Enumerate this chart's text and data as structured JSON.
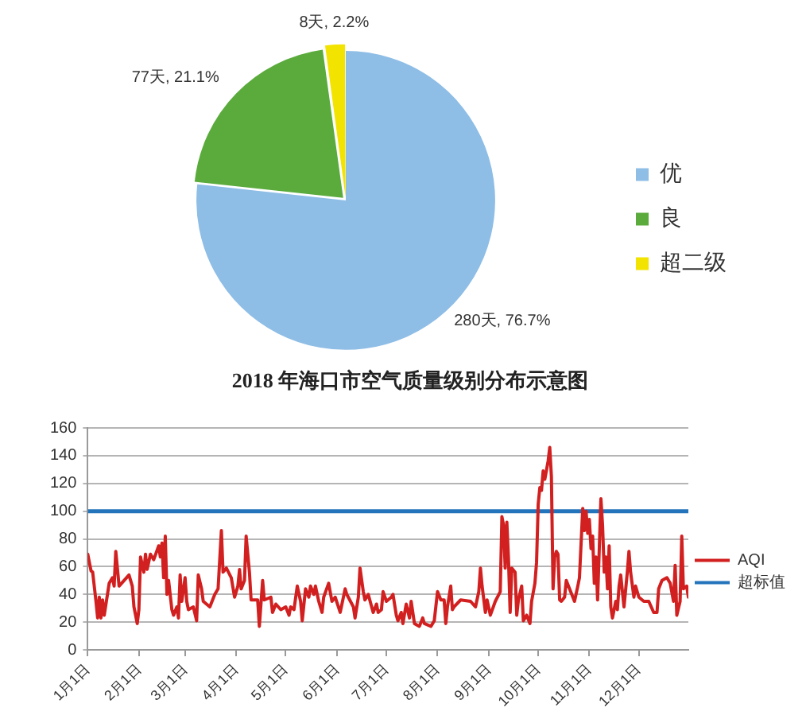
{
  "chart_data": [
    {
      "type": "pie",
      "title": "2018 年海口市空气质量级别分布示意图",
      "categories": [
        "优",
        "良",
        "超二级"
      ],
      "values": [
        280,
        77,
        8
      ],
      "colors": [
        "#8ebde6",
        "#5aab3c",
        "#f3e300"
      ],
      "value_labels": [
        "280天, 76.7%",
        "77天, 21.1%",
        "8天, 2.2%"
      ],
      "legend": "right"
    },
    {
      "type": "line",
      "x": [
        "2018-01-01",
        "2018-01-03",
        "2018-01-04",
        "2018-01-06",
        "2018-01-07",
        "2018-01-08",
        "2018-01-09",
        "2018-01-10",
        "2018-01-11",
        "2018-01-14",
        "2018-01-16",
        "2018-01-17",
        "2018-01-18",
        "2018-01-20",
        "2018-01-23",
        "2018-01-26",
        "2018-01-28",
        "2018-01-29",
        "2018-01-31",
        "2018-02-01",
        "2018-02-02",
        "2018-02-04",
        "2018-02-05",
        "2018-02-06",
        "2018-02-08",
        "2018-02-10",
        "2018-02-13",
        "2018-02-14",
        "2018-02-15",
        "2018-02-16",
        "2018-02-17",
        "2018-02-18",
        "2018-02-19",
        "2018-02-21",
        "2018-02-22",
        "2018-02-24",
        "2018-02-25",
        "2018-02-26",
        "2018-02-27",
        "2018-03-01",
        "2018-03-02",
        "2018-03-03",
        "2018-03-06",
        "2018-03-08",
        "2018-03-09",
        "2018-03-11",
        "2018-03-12",
        "2018-03-16",
        "2018-03-19",
        "2018-03-21",
        "2018-03-23",
        "2018-03-24",
        "2018-03-26",
        "2018-03-29",
        "2018-03-31",
        "2018-04-02",
        "2018-04-03",
        "2018-04-04",
        "2018-04-06",
        "2018-04-07",
        "2018-04-09",
        "2018-04-10",
        "2018-04-14",
        "2018-04-15",
        "2018-04-17",
        "2018-04-18",
        "2018-04-22",
        "2018-04-23",
        "2018-04-25",
        "2018-04-28",
        "2018-05-01",
        "2018-05-03",
        "2018-05-04",
        "2018-05-06",
        "2018-05-08",
        "2018-05-10",
        "2018-05-11",
        "2018-05-13",
        "2018-05-15",
        "2018-05-16",
        "2018-05-18",
        "2018-05-19",
        "2018-05-21",
        "2018-05-23",
        "2018-05-24",
        "2018-05-27",
        "2018-05-29",
        "2018-05-31",
        "2018-06-03",
        "2018-06-06",
        "2018-06-07",
        "2018-06-11",
        "2018-06-12",
        "2018-06-14",
        "2018-06-15",
        "2018-06-17",
        "2018-06-18",
        "2018-06-20",
        "2018-06-23",
        "2018-06-25",
        "2018-06-26",
        "2018-06-28",
        "2018-06-29",
        "2018-07-01",
        "2018-07-04",
        "2018-07-05",
        "2018-07-07",
        "2018-07-08",
        "2018-07-10",
        "2018-07-11",
        "2018-07-13",
        "2018-07-15",
        "2018-07-16",
        "2018-07-18",
        "2018-07-21",
        "2018-07-23",
        "2018-07-24",
        "2018-07-28",
        "2018-07-30",
        "2018-08-01",
        "2018-08-03",
        "2018-08-05",
        "2018-08-06",
        "2018-08-07",
        "2018-08-09",
        "2018-08-10",
        "2018-08-11",
        "2018-08-15",
        "2018-08-21",
        "2018-08-24",
        "2018-08-26",
        "2018-08-27",
        "2018-08-28",
        "2018-08-30",
        "2018-08-31",
        "2018-09-02",
        "2018-09-05",
        "2018-09-08",
        "2018-09-09",
        "2018-09-10",
        "2018-09-11",
        "2018-09-12",
        "2018-09-13",
        "2018-09-14",
        "2018-09-15",
        "2018-09-17",
        "2018-09-18",
        "2018-09-19",
        "2018-09-21",
        "2018-09-22",
        "2018-09-24",
        "2018-09-26",
        "2018-09-27",
        "2018-09-29",
        "2018-09-30",
        "2018-10-01",
        "2018-10-02",
        "2018-10-03",
        "2018-10-04",
        "2018-10-05",
        "2018-10-07",
        "2018-10-08",
        "2018-10-09",
        "2018-10-10",
        "2018-10-11",
        "2018-10-12",
        "2018-10-13",
        "2018-10-14",
        "2018-10-15",
        "2018-10-17",
        "2018-10-18",
        "2018-10-20",
        "2018-10-23",
        "2018-10-25",
        "2018-10-26",
        "2018-10-28",
        "2018-10-29",
        "2018-10-30",
        "2018-10-31",
        "2018-11-01",
        "2018-11-02",
        "2018-11-03",
        "2018-11-04",
        "2018-11-05",
        "2018-11-06",
        "2018-11-08",
        "2018-11-09",
        "2018-11-10",
        "2018-11-11",
        "2018-11-12",
        "2018-11-13",
        "2018-11-14",
        "2018-11-15",
        "2018-11-17",
        "2018-11-18",
        "2018-11-19",
        "2018-11-20",
        "2018-11-22",
        "2018-11-24",
        "2018-11-25",
        "2018-11-26",
        "2018-11-28",
        "2018-11-29",
        "2018-12-01",
        "2018-12-04",
        "2018-12-07",
        "2018-12-10",
        "2018-12-12",
        "2018-12-13",
        "2018-12-15",
        "2018-12-18",
        "2018-12-20",
        "2018-12-22",
        "2018-12-23",
        "2018-12-24",
        "2018-12-26",
        "2018-12-27",
        "2018-12-28",
        "2018-12-30",
        "2018-12-31"
      ],
      "series": [
        {
          "name": "AQI",
          "color": "#d21f1f",
          "values": [
            69,
            57,
            56,
            35,
            23,
            38,
            23,
            36,
            25,
            48,
            52,
            46,
            71,
            46,
            50,
            54,
            46,
            31,
            19,
            29,
            67,
            56,
            69,
            58,
            69,
            65,
            75,
            67,
            77,
            52,
            82,
            40,
            50,
            29,
            25,
            31,
            23,
            54,
            35,
            52,
            35,
            29,
            31,
            21,
            54,
            44,
            35,
            31,
            40,
            44,
            86,
            56,
            59,
            52,
            38,
            46,
            58,
            44,
            50,
            82,
            56,
            36,
            36,
            17,
            50,
            36,
            38,
            27,
            33,
            29,
            31,
            25,
            31,
            29,
            46,
            35,
            21,
            44,
            38,
            46,
            40,
            46,
            35,
            27,
            38,
            48,
            35,
            38,
            27,
            44,
            40,
            31,
            23,
            38,
            59,
            42,
            36,
            40,
            27,
            33,
            27,
            29,
            42,
            35,
            38,
            40,
            25,
            21,
            27,
            19,
            33,
            23,
            35,
            19,
            17,
            23,
            19,
            17,
            21,
            42,
            36,
            36,
            19,
            31,
            46,
            29,
            31,
            36,
            35,
            31,
            42,
            59,
            46,
            27,
            36,
            25,
            35,
            42,
            96,
            90,
            59,
            92,
            65,
            27,
            59,
            56,
            25,
            36,
            46,
            21,
            25,
            19,
            35,
            48,
            63,
            105,
            117,
            115,
            129,
            123,
            136,
            146,
            125,
            44,
            67,
            71,
            69,
            36,
            35,
            38,
            50,
            44,
            35,
            46,
            52,
            102,
            86,
            100,
            84,
            94,
            73,
            82,
            48,
            67,
            36,
            109,
            90,
            56,
            67,
            44,
            75,
            31,
            23,
            35,
            29,
            46,
            54,
            31,
            56,
            71,
            56,
            38,
            46,
            38,
            35,
            35,
            27,
            27,
            44,
            50,
            52,
            48,
            35,
            61,
            25,
            35,
            82,
            44,
            46,
            38
          ]
        }
      ],
      "xlim": [
        "2018-01-01",
        "2018-12-31"
      ],
      "xticks": [
        {
          "value": "2018-01-01",
          "label": "1月1日"
        },
        {
          "value": "2018-02-01",
          "label": "2月1日"
        },
        {
          "value": "2018-03-01",
          "label": "3月1日"
        },
        {
          "value": "2018-04-01",
          "label": "4月1日"
        },
        {
          "value": "2018-05-01",
          "label": "5月1日"
        },
        {
          "value": "2018-06-01",
          "label": "6月1日"
        },
        {
          "value": "2018-07-01",
          "label": "7月1日"
        },
        {
          "value": "2018-08-01",
          "label": "8月1日"
        },
        {
          "value": "2018-09-01",
          "label": "9月1日"
        },
        {
          "value": "2018-10-01",
          "label": "10月1日"
        },
        {
          "value": "2018-11-01",
          "label": "11月1日"
        },
        {
          "value": "2018-12-01",
          "label": "12月1日"
        }
      ],
      "ylim": [
        0,
        160
      ],
      "yticks": [
        0,
        20,
        40,
        60,
        80,
        100,
        120,
        140,
        160
      ],
      "ref_lines": [
        {
          "axis": "y",
          "value": 100,
          "label": "超标值",
          "color": "#2474bb"
        }
      ],
      "grid": "y",
      "legend": "right",
      "marker": "none"
    }
  ]
}
